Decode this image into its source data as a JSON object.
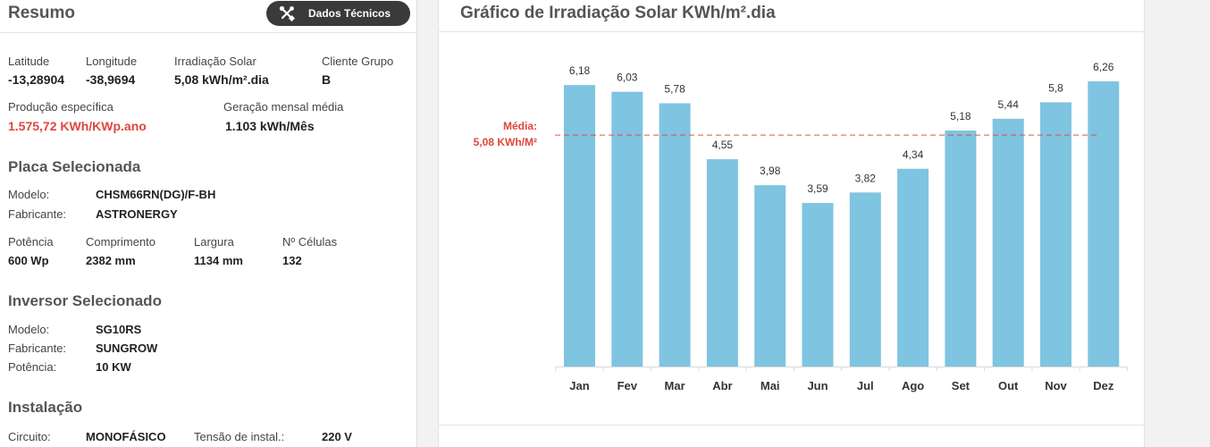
{
  "summary": {
    "title": "Resumo",
    "tech_button": "Dados Técnicos",
    "latitude_label": "Latitude",
    "latitude_value": "-13,28904",
    "longitude_label": "Longitude",
    "longitude_value": "-38,9694",
    "irradiation_label": "Irradiação Solar",
    "irradiation_value": "5,08 kWh/m².dia",
    "client_group_label": "Cliente Grupo",
    "client_group_value": "B",
    "specific_production_label": "Produção específica",
    "specific_production_value": "1.575,72 KWh/KWp.ano",
    "monthly_generation_label": "Geração mensal média",
    "monthly_generation_value": "1.103 kWh/Mês"
  },
  "panel": {
    "title": "Placa Selecionada",
    "model_label": "Modelo:",
    "model_value": "CHSM66RN(DG)/F-BH",
    "manufacturer_label": "Fabricante:",
    "manufacturer_value": "ASTRONERGY",
    "power_label": "Potência",
    "power_value": "600 Wp",
    "length_label": "Comprimento",
    "length_value": "2382 mm",
    "width_label": "Largura",
    "width_value": "1134 mm",
    "cells_label": "Nº Células",
    "cells_value": "132"
  },
  "inverter": {
    "title": "Inversor Selecionado",
    "model_label": "Modelo:",
    "model_value": "SG10RS",
    "manufacturer_label": "Fabricante:",
    "manufacturer_value": "SUNGROW",
    "power_label": "Potência:",
    "power_value": "10 KW"
  },
  "installation": {
    "title": "Instalação",
    "circuit_label": "Circuito:",
    "circuit_value": "MONOFÁSICO",
    "voltage_label": "Tensão de instal.:",
    "voltage_value": "220 V"
  },
  "colors": {
    "bar": "#7fc4e0",
    "average_line": "#e0473b",
    "accent_red": "#e0473b",
    "button_bg": "#3a3a3a"
  },
  "icons": {
    "tech_button_icon": "wrench-screwdriver-icon"
  },
  "chart_data": {
    "type": "bar",
    "title": "Gráfico de Irradiação Solar KWh/m².dia",
    "categories": [
      "Jan",
      "Fev",
      "Mar",
      "Abr",
      "Mai",
      "Jun",
      "Jul",
      "Ago",
      "Set",
      "Out",
      "Nov",
      "Dez"
    ],
    "values": [
      6.18,
      6.03,
      5.78,
      4.55,
      3.98,
      3.59,
      3.82,
      4.34,
      5.18,
      5.44,
      5.8,
      6.26
    ],
    "value_labels": [
      "6,18",
      "6,03",
      "5,78",
      "4,55",
      "3,98",
      "3,59",
      "3,82",
      "4,34",
      "5,18",
      "5,44",
      "5,8",
      "6,26"
    ],
    "average": 5.08,
    "average_label_line1": "Média:",
    "average_label_line2": "5,08 KWh/M²",
    "ylim": [
      0,
      6.26
    ],
    "grid": false,
    "legend": "none"
  }
}
